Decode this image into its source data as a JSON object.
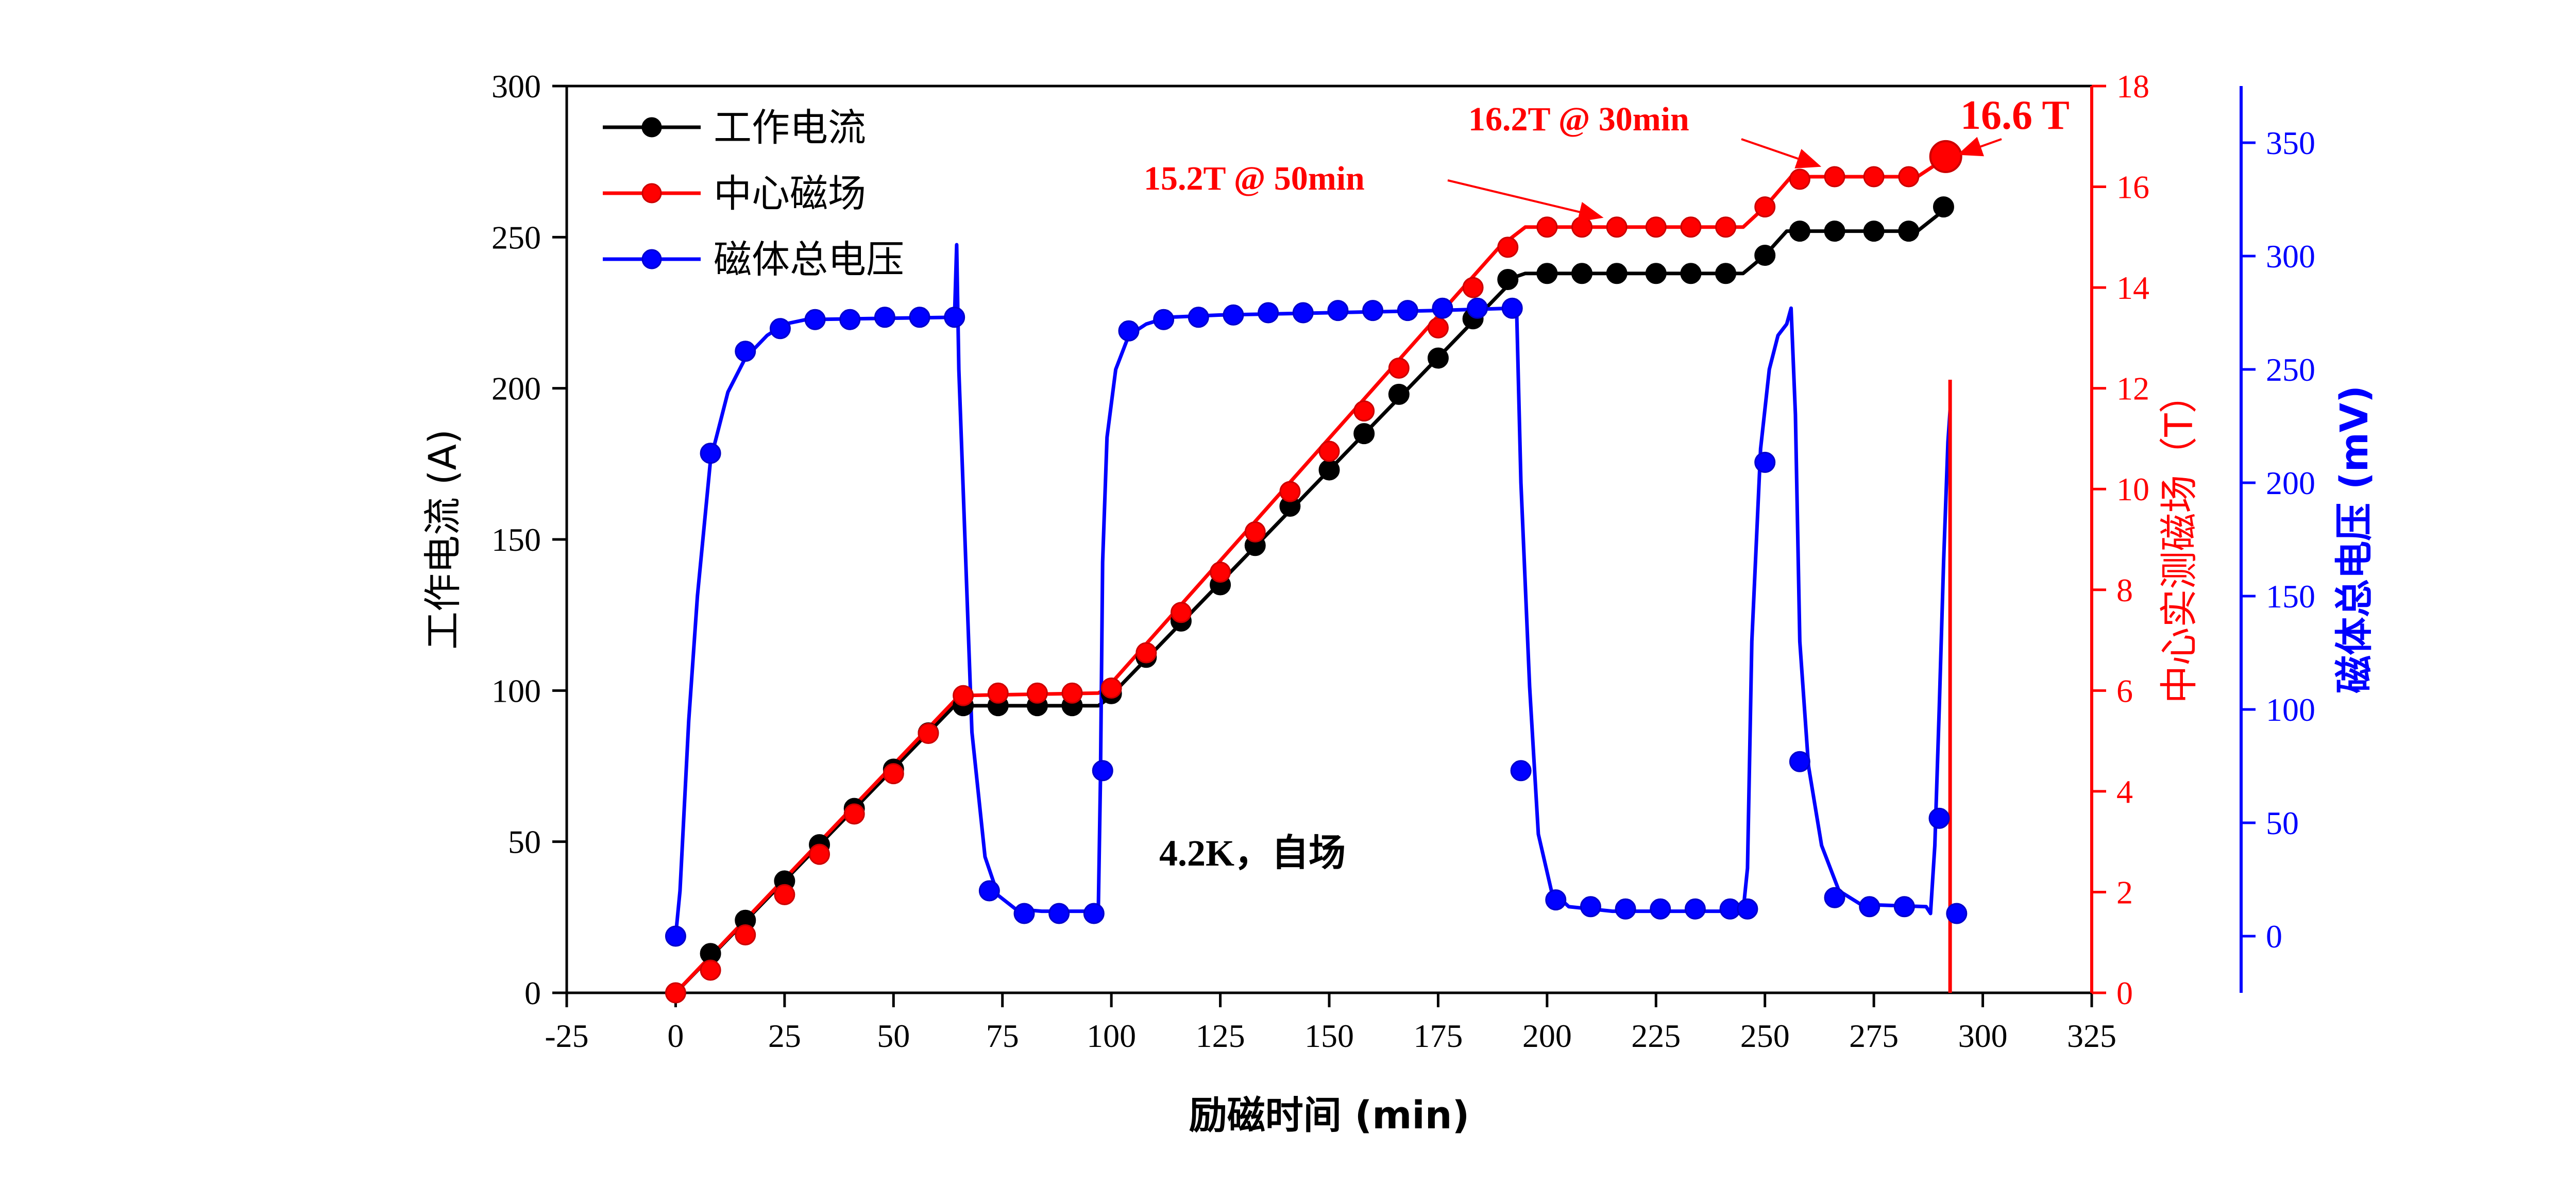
{
  "chart_data": {
    "type": "line",
    "xlabel": "励磁时间 (min)",
    "x_ticks": [
      -25,
      0,
      25,
      50,
      75,
      100,
      125,
      150,
      175,
      200,
      225,
      250,
      275,
      300,
      325
    ],
    "xlim": [
      -25,
      325
    ],
    "y_left": {
      "label": "工作电流 (A)",
      "lim": [
        0,
        300
      ],
      "ticks": [
        0,
        50,
        100,
        150,
        200,
        250,
        300
      ],
      "color": "#000000"
    },
    "y_right1": {
      "label": "中心实测磁场（T）",
      "lim": [
        0,
        18
      ],
      "ticks": [
        0,
        2,
        4,
        6,
        8,
        10,
        12,
        14,
        16,
        18
      ],
      "color": "#ff0000"
    },
    "y_right2": {
      "label": "磁体总电压 (mV)",
      "lim": [
        -25,
        375
      ],
      "ticks": [
        0,
        50,
        100,
        150,
        200,
        250,
        300,
        350
      ],
      "color": "#0000ff"
    },
    "legend_position": "top-left",
    "series": [
      {
        "name": "工作电流",
        "axis": "left",
        "color": "#000000",
        "line": [
          [
            0,
            0
          ],
          [
            64,
            95
          ],
          [
            65,
            95
          ],
          [
            97,
            95
          ],
          [
            99,
            97
          ],
          [
            193,
            237
          ],
          [
            195,
            238
          ],
          [
            245,
            238
          ],
          [
            250,
            244
          ],
          [
            255,
            252
          ],
          [
            285,
            252
          ],
          [
            292,
            260
          ]
        ],
        "markers": [
          [
            8,
            13
          ],
          [
            16,
            24
          ],
          [
            25,
            37
          ],
          [
            33,
            49
          ],
          [
            41,
            61
          ],
          [
            50,
            74
          ],
          [
            58,
            86
          ],
          [
            66,
            95
          ],
          [
            74,
            95
          ],
          [
            83,
            95
          ],
          [
            91,
            95
          ],
          [
            100,
            99
          ],
          [
            108,
            111
          ],
          [
            116,
            123
          ],
          [
            125,
            135
          ],
          [
            133,
            148
          ],
          [
            141,
            161
          ],
          [
            150,
            173
          ],
          [
            158,
            185
          ],
          [
            166,
            198
          ],
          [
            175,
            210
          ],
          [
            183,
            223
          ],
          [
            191,
            236
          ],
          [
            200,
            238
          ],
          [
            208,
            238
          ],
          [
            216,
            238
          ],
          [
            225,
            238
          ],
          [
            233,
            238
          ],
          [
            241,
            238
          ],
          [
            250,
            244
          ],
          [
            258,
            252
          ],
          [
            266,
            252
          ],
          [
            275,
            252
          ],
          [
            283,
            252
          ],
          [
            291,
            260
          ]
        ]
      },
      {
        "name": "中心磁场",
        "axis": "right1",
        "color": "#ff0000",
        "line": [
          [
            0,
            0
          ],
          [
            64,
            5.8
          ],
          [
            65,
            5.9
          ],
          [
            97,
            5.95
          ],
          [
            99,
            6.05
          ],
          [
            189,
            14.8
          ],
          [
            195,
            15.2
          ],
          [
            245,
            15.2
          ],
          [
            250,
            15.6
          ],
          [
            256,
            16.2
          ],
          [
            285,
            16.2
          ],
          [
            292,
            16.6
          ]
        ],
        "markers": [
          [
            0,
            0
          ],
          [
            8,
            0.45
          ],
          [
            16,
            1.15
          ],
          [
            25,
            1.95
          ],
          [
            33,
            2.75
          ],
          [
            41,
            3.55
          ],
          [
            50,
            4.35
          ],
          [
            58,
            5.15
          ],
          [
            66,
            5.9
          ],
          [
            74,
            5.95
          ],
          [
            83,
            5.95
          ],
          [
            91,
            5.95
          ],
          [
            100,
            6.05
          ],
          [
            108,
            6.75
          ],
          [
            116,
            7.55
          ],
          [
            125,
            8.35
          ],
          [
            133,
            9.15
          ],
          [
            141,
            9.95
          ],
          [
            150,
            10.75
          ],
          [
            158,
            11.55
          ],
          [
            166,
            12.4
          ],
          [
            175,
            13.2
          ],
          [
            183,
            14.0
          ],
          [
            191,
            14.8
          ],
          [
            200,
            15.2
          ],
          [
            208,
            15.2
          ],
          [
            216,
            15.2
          ],
          [
            225,
            15.2
          ],
          [
            233,
            15.2
          ],
          [
            241,
            15.2
          ],
          [
            250,
            15.6
          ],
          [
            258,
            16.15
          ],
          [
            266,
            16.2
          ],
          [
            275,
            16.2
          ],
          [
            283,
            16.2
          ],
          [
            291,
            16.6
          ]
        ]
      },
      {
        "name": "磁体总电压",
        "axis": "right2",
        "color": "#0000ff",
        "line": [
          [
            0,
            0
          ],
          [
            1,
            20
          ],
          [
            3,
            95
          ],
          [
            5,
            150
          ],
          [
            8,
            210
          ],
          [
            12,
            240
          ],
          [
            16,
            255
          ],
          [
            21,
            265
          ],
          [
            25,
            270
          ],
          [
            30,
            272
          ],
          [
            64,
            273
          ],
          [
            64.5,
            305
          ],
          [
            65,
            250
          ],
          [
            68,
            90
          ],
          [
            71,
            35
          ],
          [
            74,
            18
          ],
          [
            78,
            12
          ],
          [
            84,
            11
          ],
          [
            97,
            11
          ],
          [
            97.5,
            70
          ],
          [
            98,
            165
          ],
          [
            99,
            220
          ],
          [
            101,
            250
          ],
          [
            104,
            265
          ],
          [
            108,
            270
          ],
          [
            113,
            273
          ],
          [
            125,
            274
          ],
          [
            175,
            276
          ],
          [
            192,
            277
          ],
          [
            193,
            277
          ],
          [
            194,
            200
          ],
          [
            196,
            110
          ],
          [
            198,
            45
          ],
          [
            201,
            20
          ],
          [
            205,
            13
          ],
          [
            215,
            11
          ],
          [
            245,
            11
          ],
          [
            246,
            30
          ],
          [
            247,
            130
          ],
          [
            249,
            215
          ],
          [
            251,
            250
          ],
          [
            253,
            265
          ],
          [
            255,
            270
          ],
          [
            256,
            277
          ],
          [
            257,
            230
          ],
          [
            258,
            130
          ],
          [
            260,
            75
          ],
          [
            263,
            40
          ],
          [
            267,
            20
          ],
          [
            272,
            14
          ],
          [
            287,
            13
          ],
          [
            288,
            10
          ],
          [
            289,
            40
          ],
          [
            290,
            100
          ],
          [
            291,
            165
          ],
          [
            292,
            218
          ],
          [
            292.5,
            232
          ]
        ],
        "markers": [
          [
            0,
            0
          ],
          [
            8,
            213
          ],
          [
            16,
            258
          ],
          [
            24,
            268
          ],
          [
            32,
            272
          ],
          [
            40,
            272
          ],
          [
            48,
            273
          ],
          [
            56,
            273
          ],
          [
            64,
            273
          ],
          [
            72,
            20
          ],
          [
            80,
            10
          ],
          [
            88,
            10
          ],
          [
            96,
            10
          ],
          [
            98,
            73
          ],
          [
            104,
            267
          ],
          [
            112,
            272
          ],
          [
            120,
            273
          ],
          [
            128,
            274
          ],
          [
            136,
            275
          ],
          [
            144,
            275
          ],
          [
            152,
            276
          ],
          [
            160,
            276
          ],
          [
            168,
            276
          ],
          [
            176,
            277
          ],
          [
            184,
            277
          ],
          [
            192,
            277
          ],
          [
            194,
            73
          ],
          [
            202,
            16
          ],
          [
            210,
            13
          ],
          [
            218,
            12
          ],
          [
            226,
            12
          ],
          [
            234,
            12
          ],
          [
            242,
            12
          ],
          [
            246,
            12
          ],
          [
            250,
            209
          ],
          [
            258,
            77
          ],
          [
            266,
            17
          ],
          [
            274,
            13
          ],
          [
            282,
            13
          ],
          [
            290,
            52
          ],
          [
            294,
            10
          ]
        ]
      }
    ],
    "vertical_line": {
      "x": 292.5,
      "color": "#ff0000"
    },
    "big_point": {
      "x": 291.5,
      "y": 16.6,
      "axis": "right1"
    },
    "annotations": [
      {
        "text": "16.2T @ 30min",
        "color": "#ff0000",
        "arrow_to": [
          263,
          16.2
        ]
      },
      {
        "text": "15.2T @ 50min",
        "color": "#ff0000",
        "arrow_to": [
          213,
          15.2
        ]
      },
      {
        "text": "16.6 T",
        "color": "#ff0000"
      },
      {
        "text": "4.2K，自场",
        "color": "#000000"
      }
    ]
  }
}
